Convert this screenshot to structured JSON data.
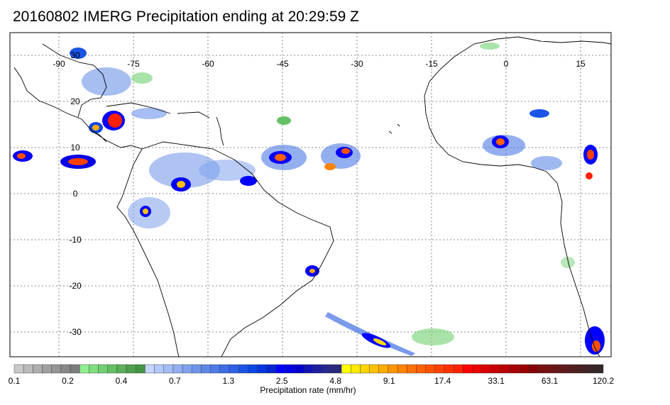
{
  "title": "20160802 IMERG Precipitation ending at 20:29:59 Z",
  "map": {
    "lon_labels": [
      "-90",
      "-75",
      "-60",
      "-45",
      "-30",
      "-15",
      "0",
      "15"
    ],
    "lat_labels": [
      "30",
      "20",
      "10",
      "0",
      "-10",
      "-20",
      "-30"
    ],
    "grid": true,
    "coastline_color": "#000000"
  },
  "colorbar": {
    "title": "Precipitation rate (mm/hr)",
    "tick_labels": [
      "0.1",
      "0.2",
      "0.4",
      "0.7",
      "1.3",
      "2.5",
      "4.8",
      "9.1",
      "17.4",
      "33.1",
      "63.1",
      "120.2"
    ],
    "colors": [
      "#c8c8c8",
      "#bbbbbb",
      "#aeaeae",
      "#a1a1a1",
      "#959595",
      "#888888",
      "#7c7c7c",
      "#8ff08f",
      "#80e080",
      "#72d072",
      "#64c064",
      "#5ab05a",
      "#4fa04f",
      "#449644",
      "#c4d6ff",
      "#b3c9fb",
      "#a2bcf6",
      "#91aff2",
      "#80a2ee",
      "#6f95ea",
      "#5e88e6",
      "#4d7ae6",
      "#3c6de6",
      "#2c60e6",
      "#1b54e6",
      "#0a47e6",
      "#0036e0",
      "#0026d0",
      "#0000ff",
      "#0000e6",
      "#0000cc",
      "#1414b4",
      "#1e1ea0",
      "#28288c",
      "#2a2a7a",
      "#ffff00",
      "#ffea00",
      "#ffd500",
      "#ffc000",
      "#ffab00",
      "#ff9600",
      "#ff8200",
      "#ff7000",
      "#ff6000",
      "#ff5000",
      "#ff4000",
      "#ff3000",
      "#ff2000",
      "#ff0000",
      "#ee0000",
      "#dd0000",
      "#cc0000",
      "#bb0000",
      "#aa0000",
      "#990000",
      "#880000",
      "#7a1010",
      "#6e1414",
      "#621818",
      "#561c1c",
      "#4a2020",
      "#3e2424",
      "#322828"
    ]
  }
}
